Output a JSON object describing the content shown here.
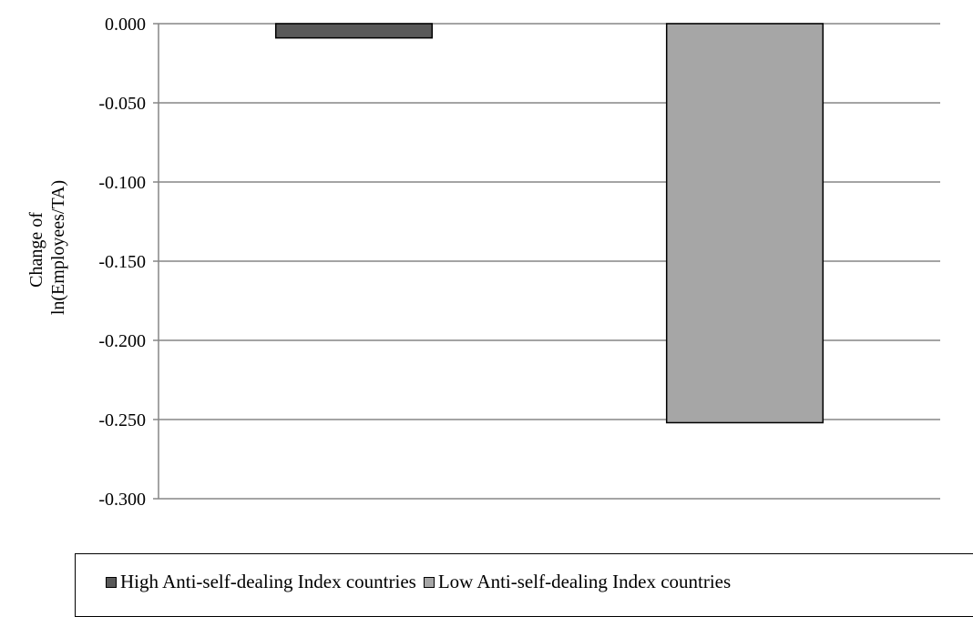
{
  "chart_data": {
    "type": "bar",
    "title": "",
    "xlabel": "",
    "ylabel": "Change of\nln(Employees/TA)",
    "ylabel_lines": [
      "Change of",
      "ln(Employees/TA)"
    ],
    "ylim": [
      -0.3,
      0.0
    ],
    "yticks": [
      0.0,
      -0.05,
      -0.1,
      -0.15,
      -0.2,
      -0.25,
      -0.3
    ],
    "ytick_labels": [
      "0.000",
      "-0.050",
      "-0.100",
      "-0.150",
      "-0.200",
      "-0.250",
      "-0.300"
    ],
    "grid": true,
    "legend_position": "bottom",
    "series": [
      {
        "name": "High Anti-self-dealing Index countries",
        "values": [
          -0.009
        ],
        "color": "#595959"
      },
      {
        "name": "Low Anti-self-dealing Index countries",
        "values": [
          -0.252
        ],
        "color": "#a6a6a6"
      }
    ]
  }
}
